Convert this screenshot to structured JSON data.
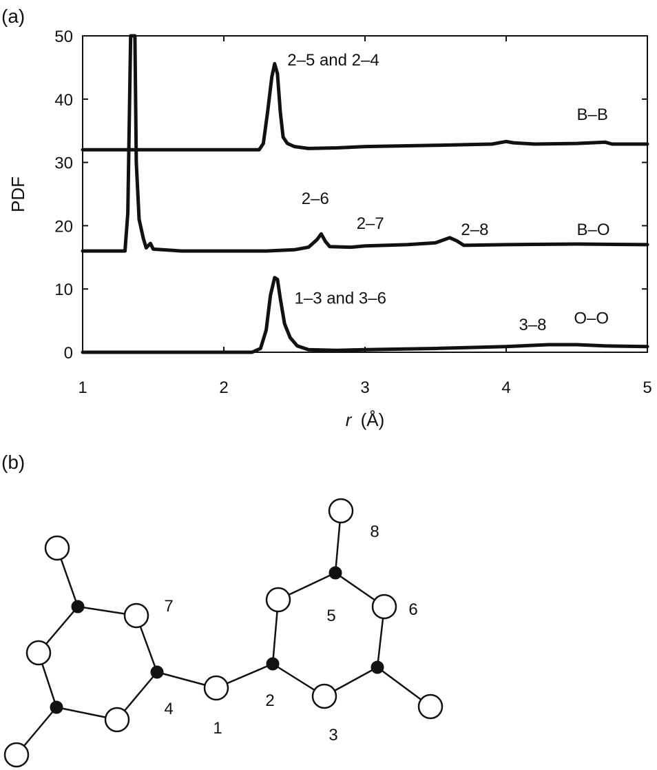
{
  "panel_a_label": "(a)",
  "panel_b_label": "(b)",
  "chart_data": {
    "type": "line",
    "xlabel_var": "r",
    "xlabel_unit": "(Å)",
    "ylabel": "PDF",
    "xlim": [
      1,
      5
    ],
    "ylim": [
      0,
      50
    ],
    "x_ticks": [
      1,
      2,
      3,
      4,
      5
    ],
    "y_ticks": [
      0,
      10,
      20,
      30,
      40,
      50
    ],
    "grid": false,
    "series": [
      {
        "name": "B–B",
        "points": [
          [
            1.0,
            32.0
          ],
          [
            2.25,
            32.0
          ],
          [
            2.28,
            33.0
          ],
          [
            2.31,
            38.0
          ],
          [
            2.34,
            43.5
          ],
          [
            2.36,
            45.6
          ],
          [
            2.38,
            44.0
          ],
          [
            2.4,
            38.0
          ],
          [
            2.42,
            34.0
          ],
          [
            2.45,
            33.0
          ],
          [
            2.5,
            32.5
          ],
          [
            2.6,
            32.2
          ],
          [
            2.8,
            32.3
          ],
          [
            3.0,
            32.5
          ],
          [
            3.5,
            32.7
          ],
          [
            3.9,
            32.9
          ],
          [
            4.0,
            33.3
          ],
          [
            4.05,
            33.1
          ],
          [
            4.2,
            32.9
          ],
          [
            4.5,
            33.0
          ],
          [
            4.7,
            33.2
          ],
          [
            4.75,
            32.9
          ],
          [
            5.0,
            32.9
          ]
        ]
      },
      {
        "name": "B–O",
        "points": [
          [
            1.0,
            16.0
          ],
          [
            1.3,
            16.0
          ],
          [
            1.32,
            22.0
          ],
          [
            1.34,
            50.0
          ],
          [
            1.37,
            50.0
          ],
          [
            1.38,
            30.0
          ],
          [
            1.4,
            21.0
          ],
          [
            1.43,
            18.0
          ],
          [
            1.45,
            16.5
          ],
          [
            1.48,
            17.2
          ],
          [
            1.5,
            16.3
          ],
          [
            1.7,
            16.0
          ],
          [
            2.3,
            16.0
          ],
          [
            2.5,
            16.2
          ],
          [
            2.6,
            16.6
          ],
          [
            2.66,
            17.8
          ],
          [
            2.69,
            18.7
          ],
          [
            2.72,
            17.5
          ],
          [
            2.75,
            16.7
          ],
          [
            2.9,
            16.6
          ],
          [
            3.0,
            16.8
          ],
          [
            3.3,
            17.0
          ],
          [
            3.5,
            17.3
          ],
          [
            3.6,
            18.1
          ],
          [
            3.65,
            17.6
          ],
          [
            3.7,
            16.9
          ],
          [
            4.0,
            17.0
          ],
          [
            4.5,
            17.1
          ],
          [
            5.0,
            17.0
          ]
        ]
      },
      {
        "name": "O–O",
        "points": [
          [
            1.0,
            0.0
          ],
          [
            2.2,
            0.0
          ],
          [
            2.26,
            0.6
          ],
          [
            2.3,
            3.5
          ],
          [
            2.33,
            9.0
          ],
          [
            2.36,
            11.8
          ],
          [
            2.38,
            11.5
          ],
          [
            2.4,
            8.5
          ],
          [
            2.43,
            4.5
          ],
          [
            2.47,
            2.3
          ],
          [
            2.52,
            1.0
          ],
          [
            2.6,
            0.4
          ],
          [
            2.8,
            0.3
          ],
          [
            3.0,
            0.4
          ],
          [
            3.5,
            0.6
          ],
          [
            4.0,
            0.9
          ],
          [
            4.3,
            1.2
          ],
          [
            4.5,
            1.2
          ],
          [
            4.7,
            1.0
          ],
          [
            5.0,
            0.9
          ]
        ]
      }
    ],
    "annotations": [
      {
        "text": "2–5 and 2–4",
        "x": 2.45,
        "y": 45.3
      },
      {
        "text": "B–B",
        "x": 4.5,
        "y": 36.7
      },
      {
        "text": "2–6",
        "x": 2.55,
        "y": 23.4
      },
      {
        "text": "2–7",
        "x": 2.94,
        "y": 19.5
      },
      {
        "text": "2–8",
        "x": 3.68,
        "y": 18.5
      },
      {
        "text": "B–O",
        "x": 4.5,
        "y": 18.5
      },
      {
        "text": "1–3 and 3–6",
        "x": 2.5,
        "y": 7.7
      },
      {
        "text": "3–8",
        "x": 4.09,
        "y": 3.5
      },
      {
        "text": "O–O",
        "x": 4.48,
        "y": 4.5
      }
    ]
  },
  "molecule": {
    "atom_numbers": [
      "1",
      "2",
      "3",
      "4",
      "5",
      "6",
      "7",
      "8"
    ]
  }
}
